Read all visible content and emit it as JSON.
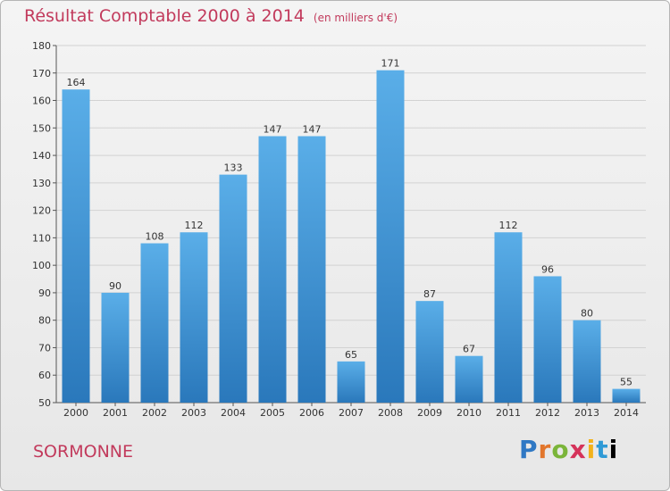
{
  "header": {
    "title": "Résultat Comptable 2000 à 2014",
    "subtitle": "(en milliers d'€)"
  },
  "footer": {
    "commune": "SORMONNE",
    "logo": [
      "P",
      "r",
      "o",
      "x",
      "i",
      "t",
      "i"
    ]
  },
  "colors": {
    "bar_top": "#5aaee8",
    "bar_bottom": "#2a78bb",
    "title": "#c23a5c",
    "grid": "#d2d2d2"
  },
  "chart_data": {
    "type": "bar",
    "title": "Résultat Comptable 2000 à 2014",
    "xlabel": "",
    "ylabel": "",
    "categories": [
      "2000",
      "2001",
      "2002",
      "2003",
      "2004",
      "2005",
      "2006",
      "2007",
      "2008",
      "2009",
      "2010",
      "2011",
      "2012",
      "2013",
      "2014"
    ],
    "values": [
      164,
      90,
      108,
      112,
      133,
      147,
      147,
      65,
      171,
      87,
      67,
      112,
      96,
      80,
      55
    ],
    "ylim": [
      50,
      180
    ],
    "yticks": [
      50,
      60,
      70,
      80,
      90,
      100,
      110,
      120,
      130,
      140,
      150,
      160,
      170,
      180
    ],
    "grid": true
  }
}
